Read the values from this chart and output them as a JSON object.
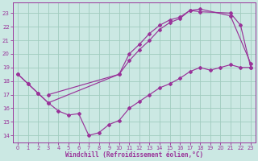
{
  "xlabel": "Windchill (Refroidissement éolien,°C)",
  "bg_color": "#cbe8e3",
  "grid_color": "#a0ccbf",
  "line_color": "#993399",
  "xlim": [
    -0.5,
    23.5
  ],
  "ylim": [
    13.5,
    23.8
  ],
  "xticks": [
    0,
    1,
    2,
    3,
    4,
    5,
    6,
    7,
    8,
    9,
    10,
    11,
    12,
    13,
    14,
    15,
    16,
    17,
    18,
    19,
    20,
    21,
    22,
    23
  ],
  "yticks": [
    14,
    15,
    16,
    17,
    18,
    19,
    20,
    21,
    22,
    23
  ],
  "line1_x": [
    0,
    1,
    2,
    3,
    10,
    11,
    12,
    13,
    14,
    15,
    16,
    17,
    18,
    21,
    22,
    23
  ],
  "line1_y": [
    18.5,
    17.8,
    17.1,
    16.4,
    18.5,
    19.5,
    20.3,
    21.0,
    21.8,
    22.3,
    22.6,
    23.2,
    23.1,
    23.0,
    22.1,
    19.0
  ],
  "line2_x": [
    0,
    1,
    2,
    3,
    4,
    5,
    6,
    7,
    8,
    9,
    10,
    11,
    12,
    13,
    14,
    15,
    16,
    17,
    18,
    19,
    20,
    21,
    22,
    23
  ],
  "line2_y": [
    18.5,
    17.8,
    17.1,
    16.4,
    15.8,
    15.5,
    15.6,
    14.0,
    14.2,
    14.8,
    15.1,
    16.0,
    16.5,
    17.0,
    17.5,
    17.8,
    18.2,
    18.7,
    19.0,
    18.8,
    19.0,
    19.2,
    19.0,
    19.0
  ],
  "line3_x": [
    3,
    10,
    11,
    12,
    13,
    14,
    15,
    16,
    17,
    18,
    21,
    23
  ],
  "line3_y": [
    17.0,
    18.5,
    20.0,
    20.7,
    21.5,
    22.1,
    22.5,
    22.7,
    23.2,
    23.3,
    22.8,
    19.3
  ]
}
